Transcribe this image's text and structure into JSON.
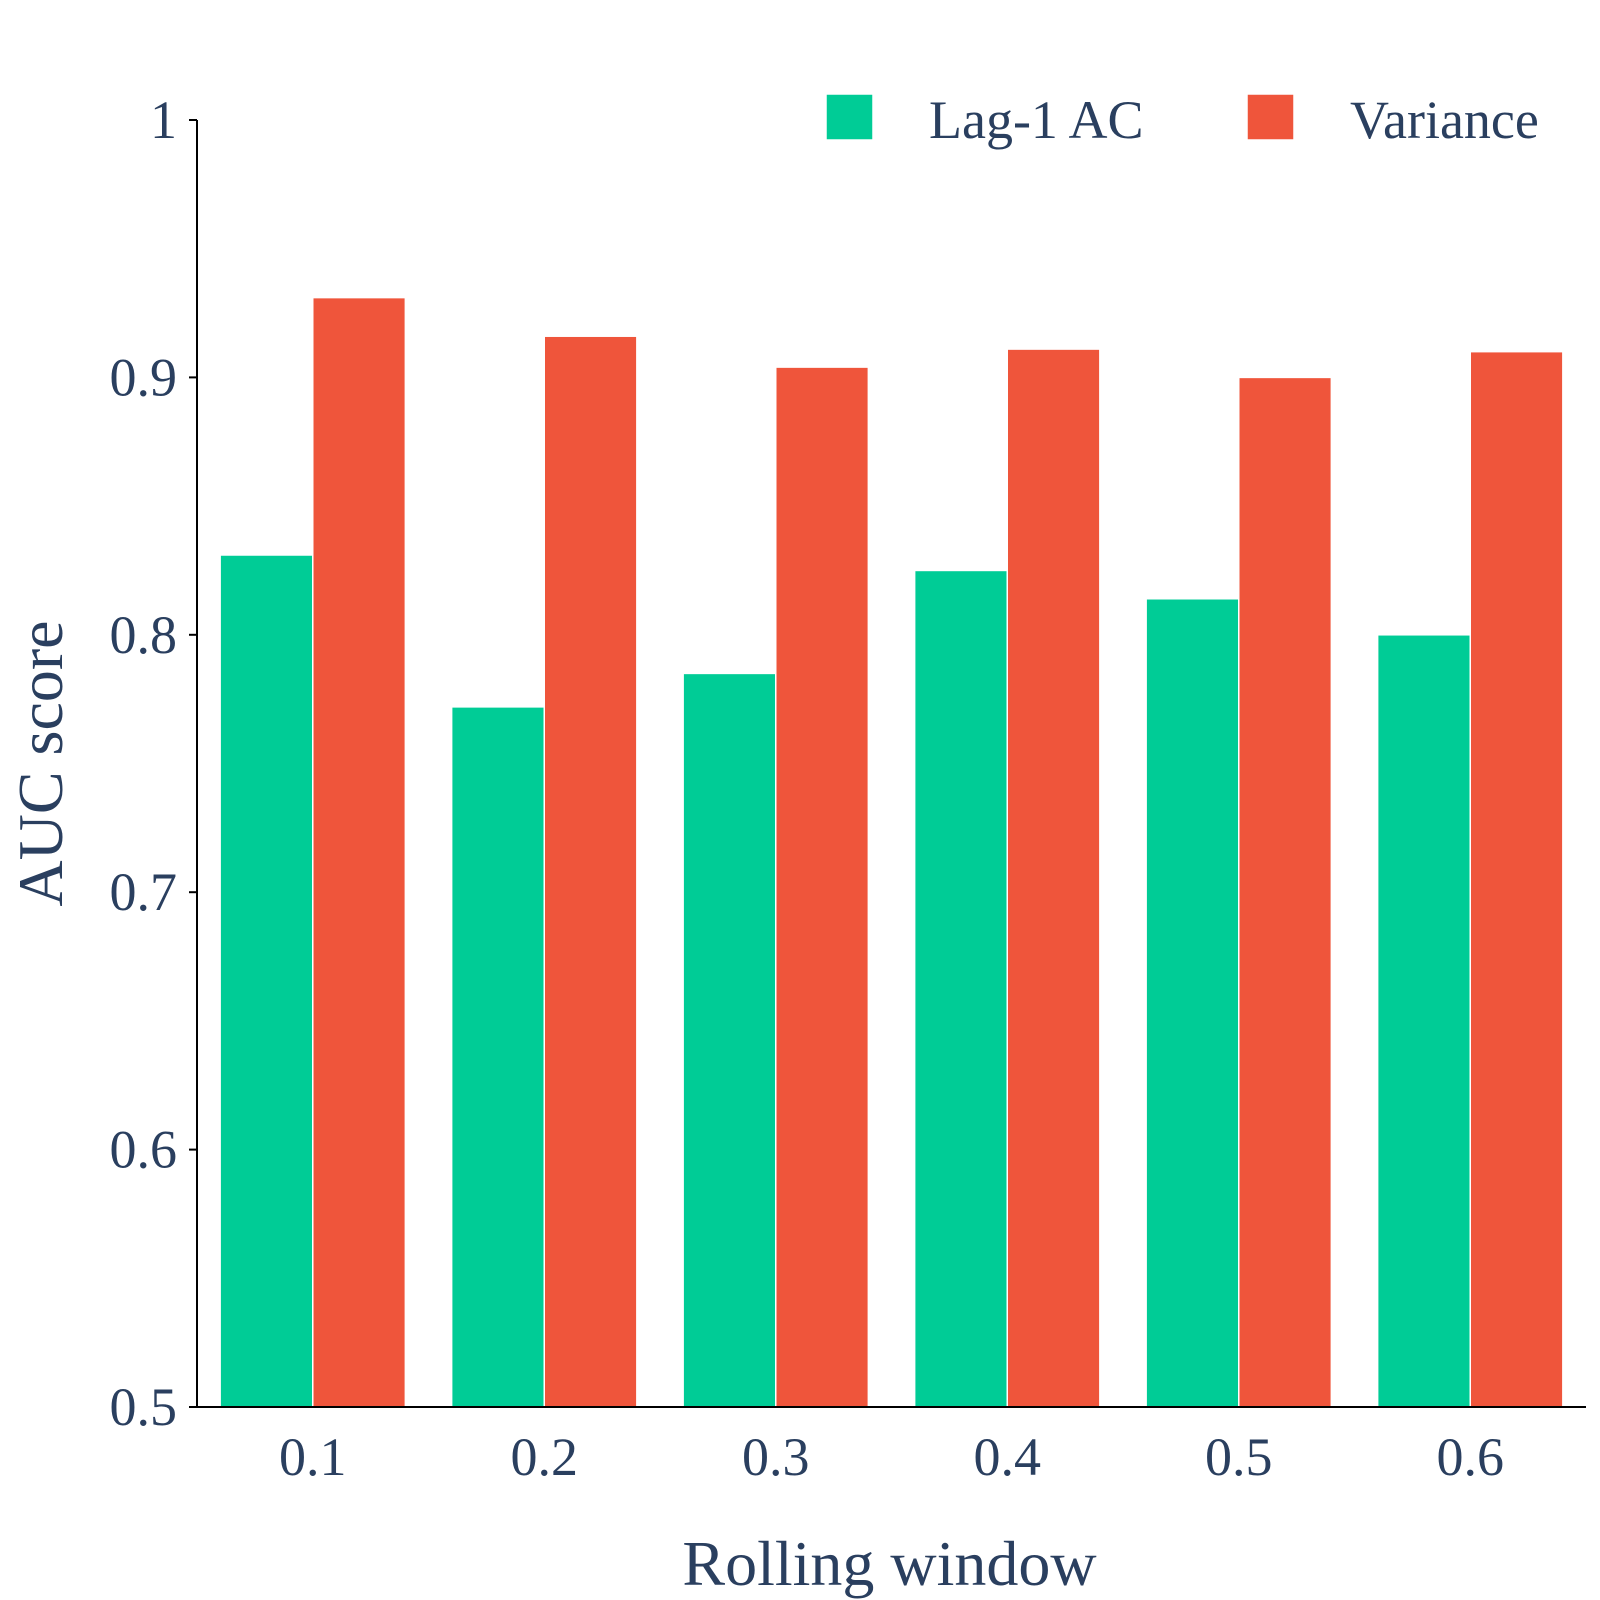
{
  "chart_data": {
    "type": "bar",
    "title": "",
    "xlabel": "Rolling window",
    "ylabel": "AUC score",
    "categories": [
      "0.1",
      "0.2",
      "0.3",
      "0.4",
      "0.5",
      "0.6"
    ],
    "ylim": [
      0.5,
      1.0
    ],
    "yticks": [
      "0.5",
      "0.6",
      "0.7",
      "0.8",
      "0.9",
      "1"
    ],
    "grid": false,
    "legend_position": "top-right",
    "series": [
      {
        "name": "Lag-1 AC",
        "color": "#00cc96",
        "values": [
          0.831,
          0.772,
          0.785,
          0.825,
          0.814,
          0.8
        ]
      },
      {
        "name": "Variance",
        "color": "#ef553b",
        "values": [
          0.931,
          0.916,
          0.904,
          0.911,
          0.9,
          0.91
        ]
      }
    ]
  }
}
